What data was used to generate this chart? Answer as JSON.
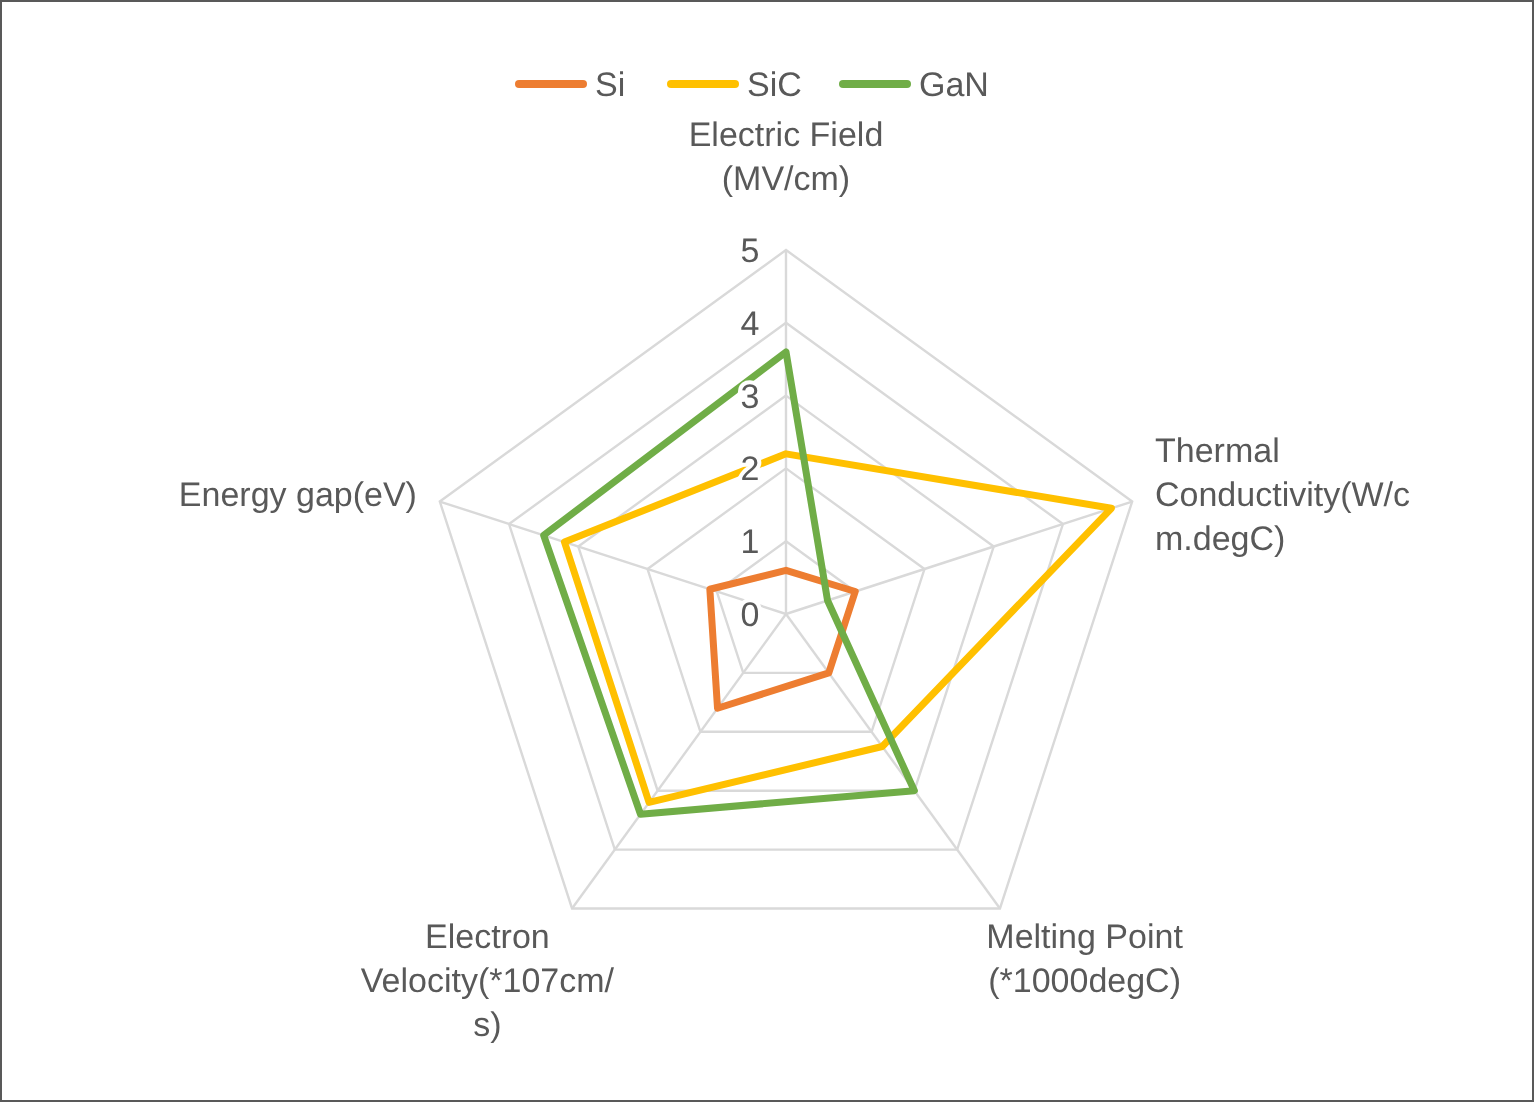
{
  "chart_data": {
    "type": "radar",
    "categories": [
      "Electric Field (MV/cm)",
      "Thermal Conductivity(W/cm.degC)",
      "Melting Point (*1000degC)",
      "Electron Velocity(*107cm/s)",
      "Energy gap(eV)"
    ],
    "series": [
      {
        "name": "Si",
        "color": "#ed7d31",
        "values": [
          0.6,
          1.0,
          1.0,
          1.6,
          1.1
        ]
      },
      {
        "name": "SiC",
        "color": "#ffc000",
        "values": [
          2.2,
          4.7,
          2.25,
          3.2,
          3.2
        ]
      },
      {
        "name": "GaN",
        "color": "#70ad47",
        "values": [
          3.6,
          0.6,
          3.0,
          3.4,
          3.5
        ]
      }
    ],
    "ylim": [
      0,
      5
    ],
    "yticks": [
      0,
      1,
      2,
      3,
      4,
      5
    ],
    "grid": true,
    "legend": "top",
    "marker": "none",
    "line_style": "solid"
  }
}
